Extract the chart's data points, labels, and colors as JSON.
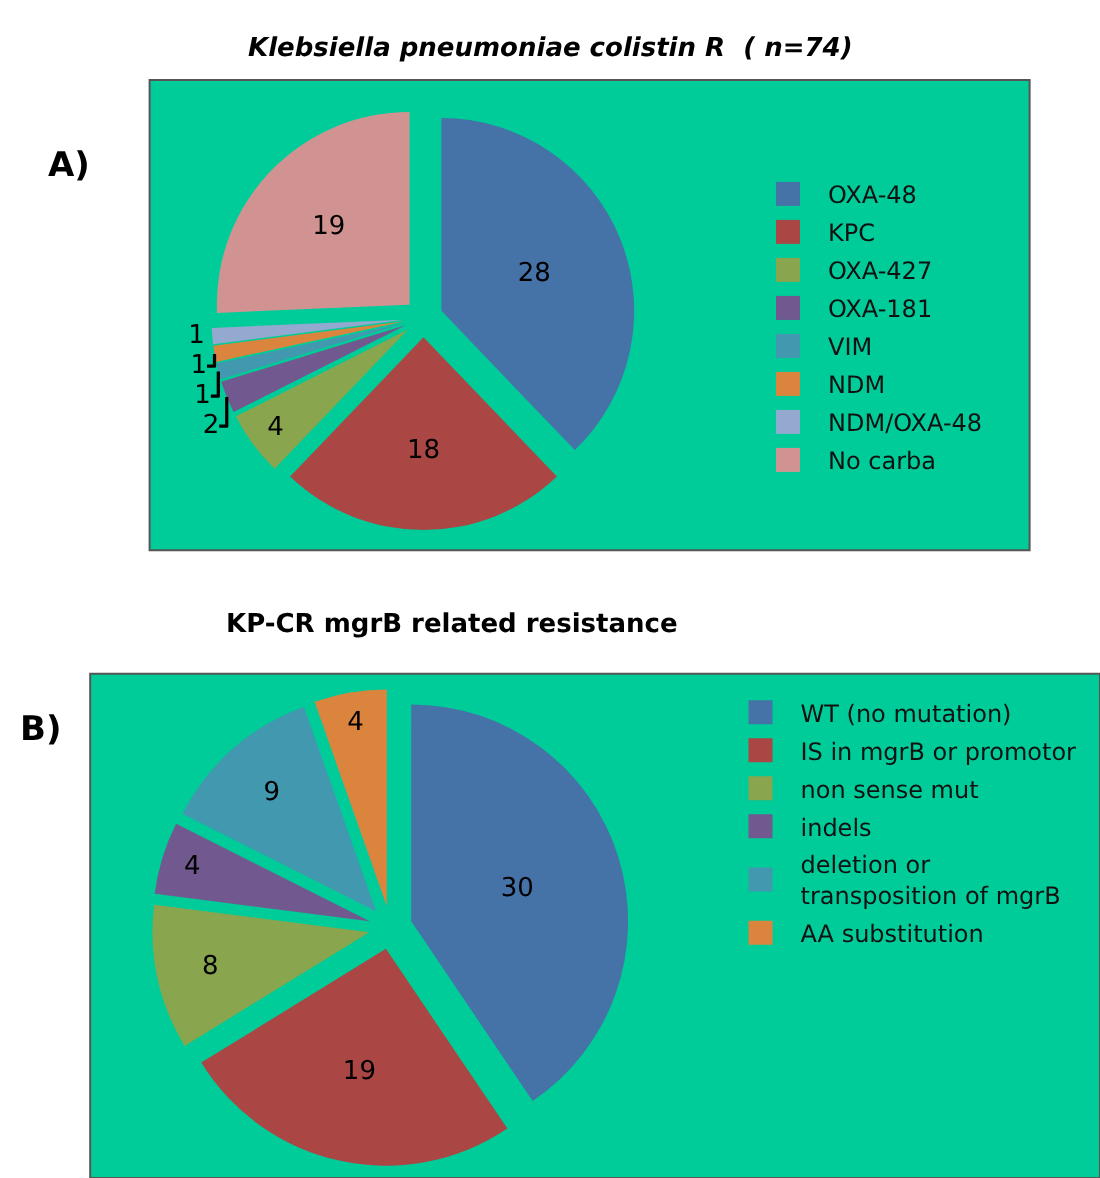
{
  "chart_data": [
    {
      "type": "pie",
      "title": "Klebsiella pneumoniae colistin R  ( n=74)",
      "annotations": [
        "A)"
      ],
      "categories": [
        "OXA-48",
        "KPC",
        "OXA-427",
        "OXA-181",
        "VIM",
        "NDM",
        "NDM/OXA-48",
        "No carba"
      ],
      "values": [
        28,
        18,
        4,
        2,
        1,
        1,
        1,
        19
      ],
      "colors": [
        "#4572a7",
        "#aa4643",
        "#89a54e",
        "#71588f",
        "#4198af",
        "#db843d",
        "#93a9cf",
        "#d19392"
      ],
      "data_labels": true,
      "legend": "right"
    },
    {
      "type": "pie",
      "title": "KP-CR mgrB related resistance",
      "annotations": [
        "B)"
      ],
      "categories": [
        "WT (no mutation)",
        "IS in mgrB or promotor",
        "non sense mut",
        "indels",
        "deletion or transposition of mgrB",
        "AA substitution"
      ],
      "values": [
        30,
        19,
        8,
        4,
        9,
        4
      ],
      "colors": [
        "#4572a7",
        "#aa4643",
        "#89a54e",
        "#71588f",
        "#4198af",
        "#db843d"
      ],
      "data_labels": true,
      "legend": "right"
    }
  ]
}
